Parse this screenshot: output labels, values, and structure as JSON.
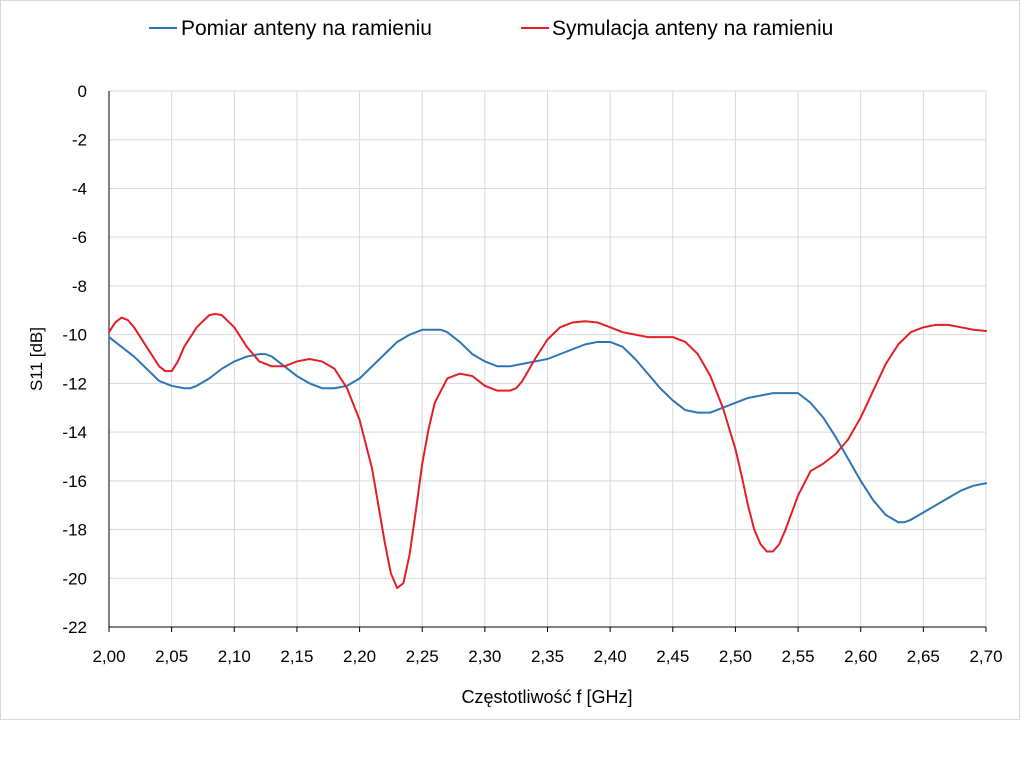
{
  "chart_data": {
    "type": "line",
    "title": "",
    "xlabel": "Częstotliwość f [GHz]",
    "ylabel": "S11 [dB]",
    "xlim": [
      2.0,
      2.7
    ],
    "ylim": [
      -22,
      0
    ],
    "x_ticks": [
      2.0,
      2.05,
      2.1,
      2.15,
      2.2,
      2.25,
      2.3,
      2.35,
      2.4,
      2.45,
      2.5,
      2.55,
      2.6,
      2.65,
      2.7
    ],
    "x_tick_labels": [
      "2,00",
      "2,05",
      "2,10",
      "2,15",
      "2,20",
      "2,25",
      "2,30",
      "2,35",
      "2,40",
      "2,45",
      "2,50",
      "2,55",
      "2,60",
      "2,65",
      "2,70"
    ],
    "y_ticks": [
      0,
      -2,
      -4,
      -6,
      -8,
      -10,
      -12,
      -14,
      -16,
      -18,
      -20,
      -22
    ],
    "y_tick_labels": [
      "0",
      "-2",
      "-4",
      "-6",
      "-8",
      "-10",
      "-12",
      "-14",
      "-16",
      "-18",
      "-20",
      "-22"
    ],
    "grid": true,
    "legend_position": "top",
    "series": [
      {
        "name": "Pomiar anteny na ramieniu",
        "color": "#2e75b6",
        "x": [
          2.0,
          2.01,
          2.02,
          2.03,
          2.04,
          2.05,
          2.06,
          2.065,
          2.07,
          2.08,
          2.09,
          2.1,
          2.11,
          2.12,
          2.125,
          2.13,
          2.14,
          2.15,
          2.16,
          2.17,
          2.18,
          2.19,
          2.2,
          2.21,
          2.22,
          2.23,
          2.24,
          2.25,
          2.26,
          2.265,
          2.27,
          2.28,
          2.29,
          2.3,
          2.31,
          2.32,
          2.33,
          2.34,
          2.35,
          2.36,
          2.37,
          2.38,
          2.39,
          2.4,
          2.41,
          2.42,
          2.43,
          2.44,
          2.45,
          2.46,
          2.47,
          2.475,
          2.48,
          2.49,
          2.5,
          2.51,
          2.52,
          2.53,
          2.54,
          2.55,
          2.56,
          2.57,
          2.58,
          2.59,
          2.6,
          2.61,
          2.62,
          2.63,
          2.635,
          2.64,
          2.65,
          2.66,
          2.67,
          2.68,
          2.69,
          2.7
        ],
        "y": [
          -10.1,
          -10.5,
          -10.9,
          -11.4,
          -11.9,
          -12.1,
          -12.2,
          -12.2,
          -12.1,
          -11.8,
          -11.4,
          -11.1,
          -10.9,
          -10.8,
          -10.8,
          -10.9,
          -11.3,
          -11.7,
          -12.0,
          -12.2,
          -12.2,
          -12.1,
          -11.8,
          -11.3,
          -10.8,
          -10.3,
          -10.0,
          -9.8,
          -9.8,
          -9.8,
          -9.9,
          -10.3,
          -10.8,
          -11.1,
          -11.3,
          -11.3,
          -11.2,
          -11.1,
          -11.0,
          -10.8,
          -10.6,
          -10.4,
          -10.3,
          -10.3,
          -10.5,
          -11.0,
          -11.6,
          -12.2,
          -12.7,
          -13.1,
          -13.2,
          -13.2,
          -13.2,
          -13.0,
          -12.8,
          -12.6,
          -12.5,
          -12.4,
          -12.4,
          -12.4,
          -12.8,
          -13.4,
          -14.2,
          -15.1,
          -16.0,
          -16.8,
          -17.4,
          -17.7,
          -17.7,
          -17.6,
          -17.3,
          -17.0,
          -16.7,
          -16.4,
          -16.2,
          -16.1
        ]
      },
      {
        "name": "Symulacja anteny na ramieniu",
        "color": "#e41e26",
        "x": [
          2.0,
          2.005,
          2.01,
          2.015,
          2.02,
          2.03,
          2.04,
          2.045,
          2.05,
          2.055,
          2.06,
          2.07,
          2.08,
          2.085,
          2.09,
          2.1,
          2.11,
          2.12,
          2.13,
          2.14,
          2.15,
          2.16,
          2.17,
          2.18,
          2.19,
          2.2,
          2.21,
          2.215,
          2.22,
          2.225,
          2.23,
          2.235,
          2.24,
          2.245,
          2.25,
          2.255,
          2.26,
          2.27,
          2.28,
          2.29,
          2.3,
          2.31,
          2.32,
          2.325,
          2.33,
          2.34,
          2.35,
          2.36,
          2.37,
          2.38,
          2.39,
          2.4,
          2.41,
          2.42,
          2.43,
          2.44,
          2.45,
          2.46,
          2.47,
          2.48,
          2.49,
          2.5,
          2.505,
          2.51,
          2.515,
          2.52,
          2.525,
          2.53,
          2.535,
          2.54,
          2.545,
          2.55,
          2.56,
          2.57,
          2.58,
          2.59,
          2.6,
          2.61,
          2.62,
          2.63,
          2.64,
          2.65,
          2.66,
          2.67,
          2.68,
          2.69,
          2.7
        ],
        "y": [
          -9.9,
          -9.5,
          -9.3,
          -9.4,
          -9.7,
          -10.5,
          -11.3,
          -11.5,
          -11.5,
          -11.1,
          -10.5,
          -9.7,
          -9.2,
          -9.15,
          -9.2,
          -9.7,
          -10.5,
          -11.1,
          -11.3,
          -11.3,
          -11.1,
          -11.0,
          -11.1,
          -11.4,
          -12.2,
          -13.5,
          -15.5,
          -17.0,
          -18.5,
          -19.8,
          -20.4,
          -20.2,
          -19.0,
          -17.2,
          -15.3,
          -13.9,
          -12.8,
          -11.8,
          -11.6,
          -11.7,
          -12.1,
          -12.3,
          -12.3,
          -12.2,
          -11.9,
          -11.0,
          -10.2,
          -9.7,
          -9.5,
          -9.45,
          -9.5,
          -9.7,
          -9.9,
          -10.0,
          -10.1,
          -10.1,
          -10.1,
          -10.3,
          -10.8,
          -11.7,
          -13.0,
          -14.7,
          -15.8,
          -17.0,
          -18.0,
          -18.6,
          -18.9,
          -18.9,
          -18.6,
          -18.0,
          -17.3,
          -16.6,
          -15.6,
          -15.3,
          -14.9,
          -14.3,
          -13.4,
          -12.3,
          -11.2,
          -10.4,
          -9.9,
          -9.7,
          -9.6,
          -9.6,
          -9.7,
          -9.8,
          -9.85
        ]
      }
    ]
  }
}
